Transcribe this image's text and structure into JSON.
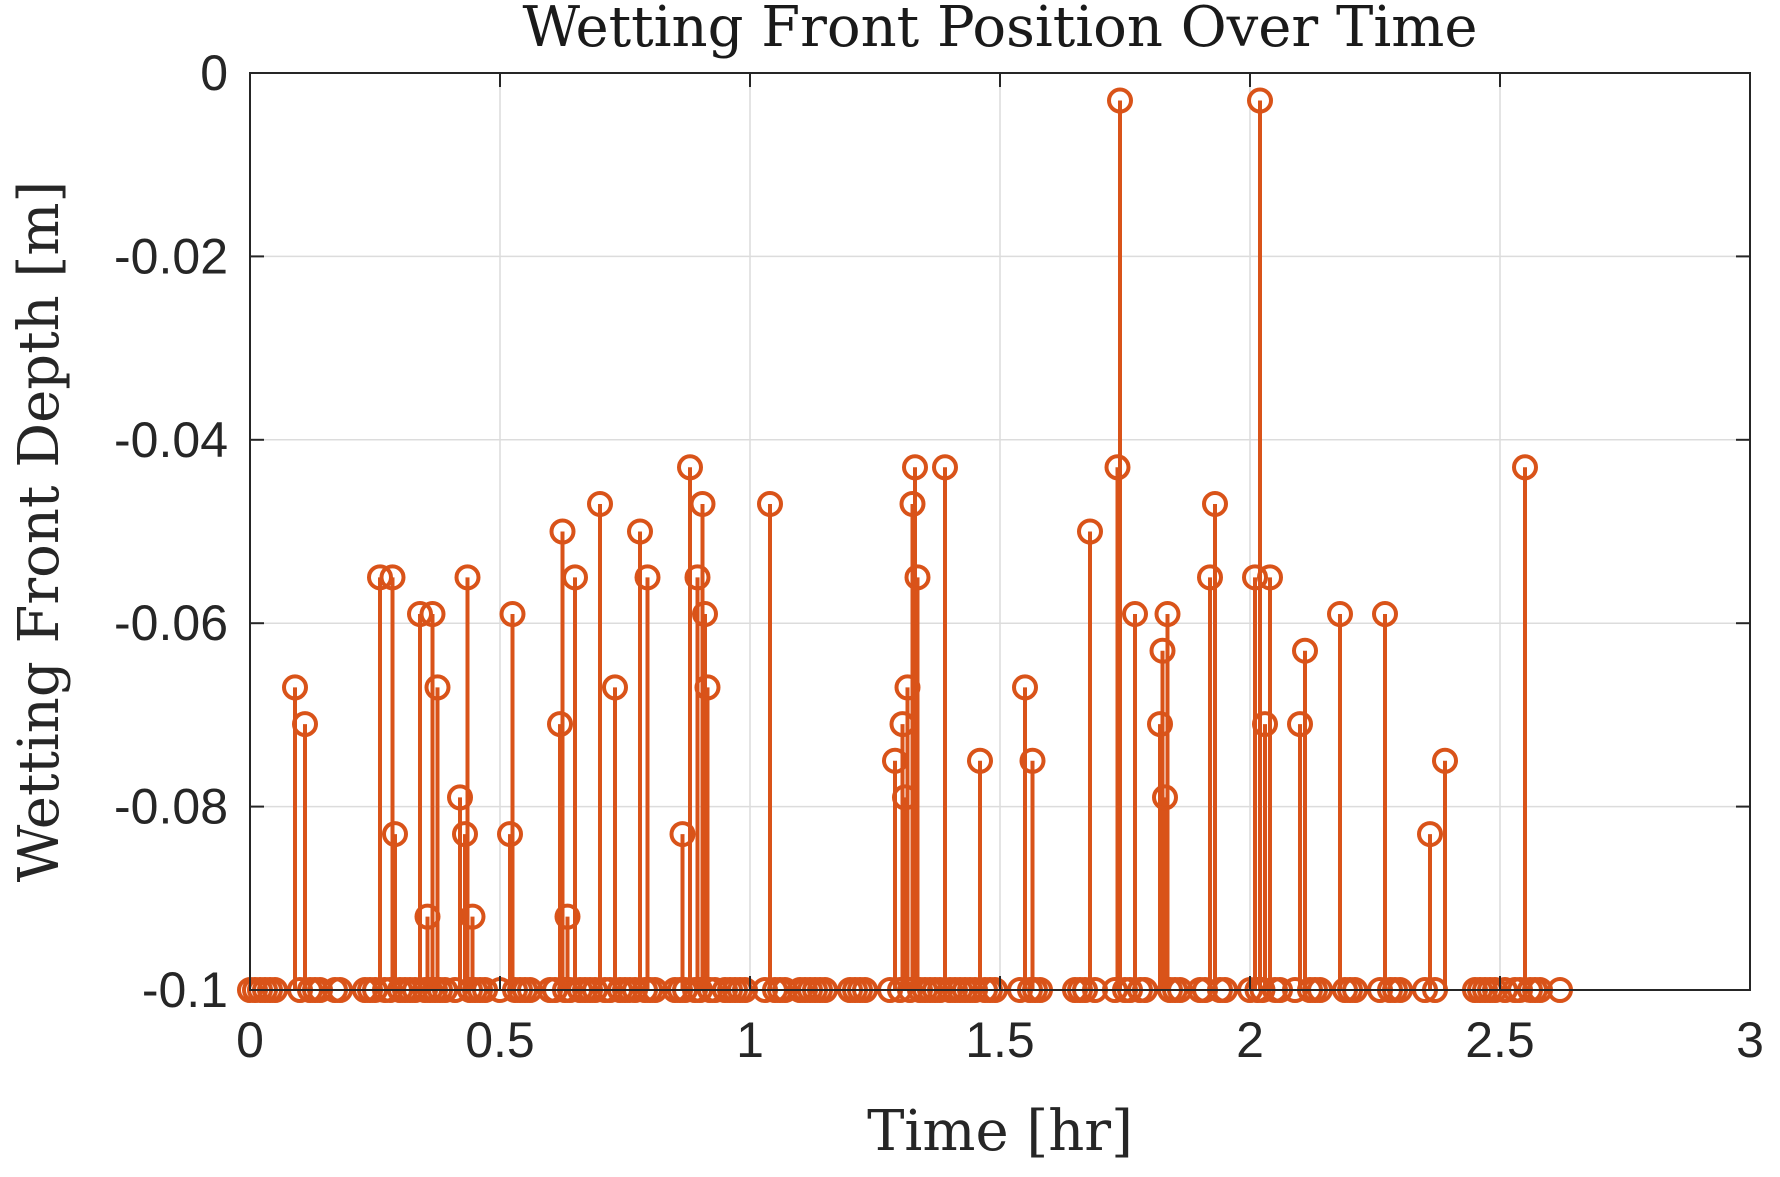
{
  "chart_data": {
    "type": "stem",
    "title": "Wetting Front Position Over Time",
    "xlabel": "Time [hr]",
    "ylabel": "Wetting Front Depth [m]",
    "xlim": [
      0,
      3
    ],
    "ylim": [
      -0.1,
      0
    ],
    "baseline": -0.1,
    "grid": true,
    "box": true,
    "xticks": [
      0,
      0.5,
      1,
      1.5,
      2,
      2.5,
      3
    ],
    "xtick_labels": [
      "0",
      "0.5",
      "1",
      "1.5",
      "2",
      "2.5",
      "3"
    ],
    "yticks": [
      0,
      -0.02,
      -0.04,
      -0.06,
      -0.08,
      -0.1
    ],
    "ytick_labels": [
      "0",
      "-0.02",
      "-0.04",
      "-0.06",
      "-0.08",
      "-0.1"
    ],
    "color": "#D95319",
    "series": [
      {
        "marker": "circle",
        "points": [
          {
            "x": 0.0,
            "y": -0.1
          },
          {
            "x": 0.01,
            "y": -0.1
          },
          {
            "x": 0.02,
            "y": -0.1
          },
          {
            "x": 0.03,
            "y": -0.1
          },
          {
            "x": 0.04,
            "y": -0.1
          },
          {
            "x": 0.05,
            "y": -0.1
          },
          {
            "x": 0.09,
            "y": -0.067
          },
          {
            "x": 0.1,
            "y": -0.1
          },
          {
            "x": 0.11,
            "y": -0.071
          },
          {
            "x": 0.12,
            "y": -0.1
          },
          {
            "x": 0.13,
            "y": -0.1
          },
          {
            "x": 0.14,
            "y": -0.1
          },
          {
            "x": 0.17,
            "y": -0.1
          },
          {
            "x": 0.18,
            "y": -0.1
          },
          {
            "x": 0.23,
            "y": -0.1
          },
          {
            "x": 0.24,
            "y": -0.1
          },
          {
            "x": 0.25,
            "y": -0.1
          },
          {
            "x": 0.26,
            "y": -0.055
          },
          {
            "x": 0.27,
            "y": -0.1
          },
          {
            "x": 0.28,
            "y": -0.1
          },
          {
            "x": 0.285,
            "y": -0.055
          },
          {
            "x": 0.29,
            "y": -0.083
          },
          {
            "x": 0.3,
            "y": -0.1
          },
          {
            "x": 0.31,
            "y": -0.1
          },
          {
            "x": 0.32,
            "y": -0.1
          },
          {
            "x": 0.33,
            "y": -0.1
          },
          {
            "x": 0.34,
            "y": -0.059
          },
          {
            "x": 0.35,
            "y": -0.1
          },
          {
            "x": 0.355,
            "y": -0.092
          },
          {
            "x": 0.36,
            "y": -0.1
          },
          {
            "x": 0.365,
            "y": -0.059
          },
          {
            "x": 0.37,
            "y": -0.1
          },
          {
            "x": 0.375,
            "y": -0.067
          },
          {
            "x": 0.38,
            "y": -0.1
          },
          {
            "x": 0.39,
            "y": -0.1
          },
          {
            "x": 0.41,
            "y": -0.1
          },
          {
            "x": 0.42,
            "y": -0.079
          },
          {
            "x": 0.43,
            "y": -0.083
          },
          {
            "x": 0.435,
            "y": -0.055
          },
          {
            "x": 0.44,
            "y": -0.1
          },
          {
            "x": 0.445,
            "y": -0.092
          },
          {
            "x": 0.45,
            "y": -0.1
          },
          {
            "x": 0.46,
            "y": -0.1
          },
          {
            "x": 0.47,
            "y": -0.1
          },
          {
            "x": 0.5,
            "y": -0.1
          },
          {
            "x": 0.52,
            "y": -0.083
          },
          {
            "x": 0.525,
            "y": -0.059
          },
          {
            "x": 0.53,
            "y": -0.1
          },
          {
            "x": 0.54,
            "y": -0.1
          },
          {
            "x": 0.55,
            "y": -0.1
          },
          {
            "x": 0.56,
            "y": -0.1
          },
          {
            "x": 0.6,
            "y": -0.1
          },
          {
            "x": 0.61,
            "y": -0.1
          },
          {
            "x": 0.62,
            "y": -0.071
          },
          {
            "x": 0.625,
            "y": -0.05
          },
          {
            "x": 0.63,
            "y": -0.1
          },
          {
            "x": 0.635,
            "y": -0.092
          },
          {
            "x": 0.64,
            "y": -0.1
          },
          {
            "x": 0.65,
            "y": -0.055
          },
          {
            "x": 0.66,
            "y": -0.1
          },
          {
            "x": 0.67,
            "y": -0.1
          },
          {
            "x": 0.68,
            "y": -0.1
          },
          {
            "x": 0.69,
            "y": -0.1
          },
          {
            "x": 0.7,
            "y": -0.047
          },
          {
            "x": 0.71,
            "y": -0.1
          },
          {
            "x": 0.72,
            "y": -0.1
          },
          {
            "x": 0.73,
            "y": -0.067
          },
          {
            "x": 0.74,
            "y": -0.1
          },
          {
            "x": 0.75,
            "y": -0.1
          },
          {
            "x": 0.76,
            "y": -0.1
          },
          {
            "x": 0.77,
            "y": -0.1
          },
          {
            "x": 0.78,
            "y": -0.05
          },
          {
            "x": 0.79,
            "y": -0.1
          },
          {
            "x": 0.795,
            "y": -0.055
          },
          {
            "x": 0.8,
            "y": -0.1
          },
          {
            "x": 0.81,
            "y": -0.1
          },
          {
            "x": 0.85,
            "y": -0.1
          },
          {
            "x": 0.86,
            "y": -0.1
          },
          {
            "x": 0.865,
            "y": -0.083
          },
          {
            "x": 0.87,
            "y": -0.1
          },
          {
            "x": 0.88,
            "y": -0.043
          },
          {
            "x": 0.89,
            "y": -0.1
          },
          {
            "x": 0.895,
            "y": -0.055
          },
          {
            "x": 0.9,
            "y": -0.1
          },
          {
            "x": 0.905,
            "y": -0.047
          },
          {
            "x": 0.91,
            "y": -0.059
          },
          {
            "x": 0.915,
            "y": -0.067
          },
          {
            "x": 0.92,
            "y": -0.1
          },
          {
            "x": 0.93,
            "y": -0.1
          },
          {
            "x": 0.95,
            "y": -0.1
          },
          {
            "x": 0.96,
            "y": -0.1
          },
          {
            "x": 0.97,
            "y": -0.1
          },
          {
            "x": 0.98,
            "y": -0.1
          },
          {
            "x": 0.99,
            "y": -0.1
          },
          {
            "x": 1.03,
            "y": -0.1
          },
          {
            "x": 1.04,
            "y": -0.047
          },
          {
            "x": 1.05,
            "y": -0.1
          },
          {
            "x": 1.06,
            "y": -0.1
          },
          {
            "x": 1.07,
            "y": -0.1
          },
          {
            "x": 1.1,
            "y": -0.1
          },
          {
            "x": 1.11,
            "y": -0.1
          },
          {
            "x": 1.12,
            "y": -0.1
          },
          {
            "x": 1.13,
            "y": -0.1
          },
          {
            "x": 1.14,
            "y": -0.1
          },
          {
            "x": 1.15,
            "y": -0.1
          },
          {
            "x": 1.2,
            "y": -0.1
          },
          {
            "x": 1.21,
            "y": -0.1
          },
          {
            "x": 1.22,
            "y": -0.1
          },
          {
            "x": 1.23,
            "y": -0.1
          },
          {
            "x": 1.28,
            "y": -0.1
          },
          {
            "x": 1.29,
            "y": -0.075
          },
          {
            "x": 1.3,
            "y": -0.1
          },
          {
            "x": 1.305,
            "y": -0.071
          },
          {
            "x": 1.31,
            "y": -0.079
          },
          {
            "x": 1.315,
            "y": -0.067
          },
          {
            "x": 1.32,
            "y": -0.1
          },
          {
            "x": 1.325,
            "y": -0.047
          },
          {
            "x": 1.33,
            "y": -0.043
          },
          {
            "x": 1.335,
            "y": -0.055
          },
          {
            "x": 1.34,
            "y": -0.1
          },
          {
            "x": 1.35,
            "y": -0.1
          },
          {
            "x": 1.36,
            "y": -0.1
          },
          {
            "x": 1.37,
            "y": -0.1
          },
          {
            "x": 1.38,
            "y": -0.1
          },
          {
            "x": 1.39,
            "y": -0.043
          },
          {
            "x": 1.4,
            "y": -0.1
          },
          {
            "x": 1.41,
            "y": -0.1
          },
          {
            "x": 1.42,
            "y": -0.1
          },
          {
            "x": 1.43,
            "y": -0.1
          },
          {
            "x": 1.44,
            "y": -0.1
          },
          {
            "x": 1.45,
            "y": -0.1
          },
          {
            "x": 1.46,
            "y": -0.075
          },
          {
            "x": 1.47,
            "y": -0.1
          },
          {
            "x": 1.48,
            "y": -0.1
          },
          {
            "x": 1.49,
            "y": -0.1
          },
          {
            "x": 1.54,
            "y": -0.1
          },
          {
            "x": 1.55,
            "y": -0.067
          },
          {
            "x": 1.56,
            "y": -0.1
          },
          {
            "x": 1.565,
            "y": -0.075
          },
          {
            "x": 1.57,
            "y": -0.1
          },
          {
            "x": 1.58,
            "y": -0.1
          },
          {
            "x": 1.65,
            "y": -0.1
          },
          {
            "x": 1.66,
            "y": -0.1
          },
          {
            "x": 1.67,
            "y": -0.1
          },
          {
            "x": 1.68,
            "y": -0.05
          },
          {
            "x": 1.69,
            "y": -0.1
          },
          {
            "x": 1.73,
            "y": -0.1
          },
          {
            "x": 1.735,
            "y": -0.043
          },
          {
            "x": 1.74,
            "y": -0.003
          },
          {
            "x": 1.75,
            "y": -0.1
          },
          {
            "x": 1.76,
            "y": -0.1
          },
          {
            "x": 1.77,
            "y": -0.059
          },
          {
            "x": 1.78,
            "y": -0.1
          },
          {
            "x": 1.79,
            "y": -0.1
          },
          {
            "x": 1.82,
            "y": -0.071
          },
          {
            "x": 1.825,
            "y": -0.063
          },
          {
            "x": 1.83,
            "y": -0.079
          },
          {
            "x": 1.835,
            "y": -0.059
          },
          {
            "x": 1.84,
            "y": -0.1
          },
          {
            "x": 1.85,
            "y": -0.1
          },
          {
            "x": 1.86,
            "y": -0.1
          },
          {
            "x": 1.9,
            "y": -0.1
          },
          {
            "x": 1.91,
            "y": -0.1
          },
          {
            "x": 1.92,
            "y": -0.055
          },
          {
            "x": 1.93,
            "y": -0.047
          },
          {
            "x": 1.94,
            "y": -0.1
          },
          {
            "x": 1.95,
            "y": -0.1
          },
          {
            "x": 2.0,
            "y": -0.1
          },
          {
            "x": 2.01,
            "y": -0.055
          },
          {
            "x": 2.015,
            "y": -0.1
          },
          {
            "x": 2.02,
            "y": -0.003
          },
          {
            "x": 2.025,
            "y": -0.1
          },
          {
            "x": 2.03,
            "y": -0.071
          },
          {
            "x": 2.04,
            "y": -0.055
          },
          {
            "x": 2.05,
            "y": -0.1
          },
          {
            "x": 2.06,
            "y": -0.1
          },
          {
            "x": 2.09,
            "y": -0.1
          },
          {
            "x": 2.1,
            "y": -0.071
          },
          {
            "x": 2.11,
            "y": -0.063
          },
          {
            "x": 2.12,
            "y": -0.1
          },
          {
            "x": 2.13,
            "y": -0.1
          },
          {
            "x": 2.14,
            "y": -0.1
          },
          {
            "x": 2.18,
            "y": -0.059
          },
          {
            "x": 2.19,
            "y": -0.1
          },
          {
            "x": 2.2,
            "y": -0.1
          },
          {
            "x": 2.21,
            "y": -0.1
          },
          {
            "x": 2.26,
            "y": -0.1
          },
          {
            "x": 2.27,
            "y": -0.059
          },
          {
            "x": 2.28,
            "y": -0.1
          },
          {
            "x": 2.29,
            "y": -0.1
          },
          {
            "x": 2.3,
            "y": -0.1
          },
          {
            "x": 2.35,
            "y": -0.1
          },
          {
            "x": 2.36,
            "y": -0.083
          },
          {
            "x": 2.37,
            "y": -0.1
          },
          {
            "x": 2.39,
            "y": -0.075
          },
          {
            "x": 2.45,
            "y": -0.1
          },
          {
            "x": 2.46,
            "y": -0.1
          },
          {
            "x": 2.47,
            "y": -0.1
          },
          {
            "x": 2.48,
            "y": -0.1
          },
          {
            "x": 2.49,
            "y": -0.1
          },
          {
            "x": 2.51,
            "y": -0.1
          },
          {
            "x": 2.53,
            "y": -0.1
          },
          {
            "x": 2.54,
            "y": -0.1
          },
          {
            "x": 2.55,
            "y": -0.043
          },
          {
            "x": 2.56,
            "y": -0.1
          },
          {
            "x": 2.57,
            "y": -0.1
          },
          {
            "x": 2.58,
            "y": -0.1
          },
          {
            "x": 2.62,
            "y": -0.1
          }
        ]
      }
    ]
  }
}
